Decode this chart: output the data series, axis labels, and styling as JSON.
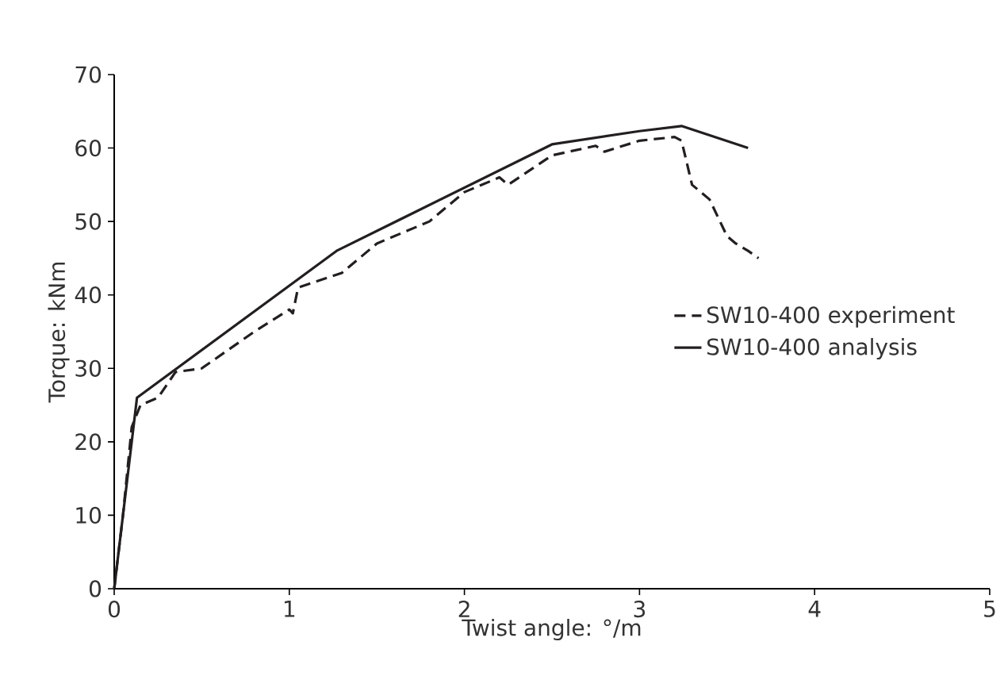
{
  "chart_data": {
    "type": "line",
    "xlabel": "Twist angle: °/m",
    "ylabel": "Torque: kNm",
    "xlim": [
      0,
      5
    ],
    "ylim": [
      0,
      70
    ],
    "xticks": [
      0,
      1,
      2,
      3,
      4,
      5
    ],
    "yticks": [
      0,
      10,
      20,
      30,
      40,
      50,
      60,
      70
    ],
    "grid": false,
    "legend": "right",
    "marker": "none",
    "series": [
      {
        "name": "SW10-400 experiment",
        "color": "#231f20",
        "line_style": "dashed",
        "x": [
          0,
          0.05,
          0.1,
          0.15,
          0.25,
          0.35,
          0.5,
          0.8,
          1.0,
          1.02,
          1.05,
          1.3,
          1.5,
          1.8,
          2.0,
          2.2,
          2.25,
          2.5,
          2.75,
          2.8,
          3.0,
          3.2,
          3.24,
          3.3,
          3.4,
          3.5,
          3.55,
          3.62,
          3.68
        ],
        "values": [
          0,
          10,
          22,
          25,
          26,
          29.5,
          30,
          35,
          38,
          37.5,
          41,
          43,
          47,
          50,
          54,
          56,
          55,
          59,
          60.3,
          59.5,
          61,
          61.5,
          61,
          55,
          53,
          48,
          47,
          46,
          45
        ]
      },
      {
        "name": "SW10-400 analysis",
        "color": "#231f20",
        "line_style": "solid",
        "x": [
          0,
          0.13,
          1.27,
          2.5,
          3.0,
          3.24,
          3.62
        ],
        "values": [
          0,
          26,
          46,
          60.5,
          62.3,
          63,
          60
        ]
      }
    ]
  }
}
